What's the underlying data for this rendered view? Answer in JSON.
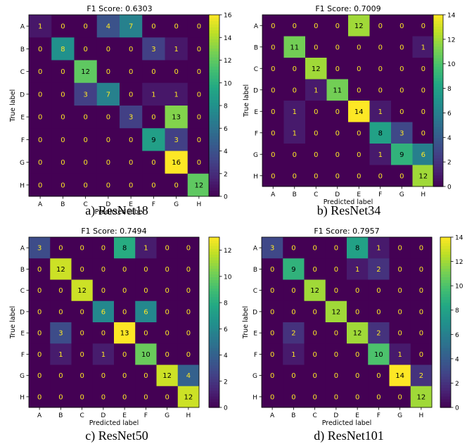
{
  "figure": {
    "captions": [
      "a) ResNet18",
      "b) ResNet34",
      "c) ResNet50",
      "d) ResNet101"
    ]
  },
  "chart_data": [
    {
      "type": "heatmap",
      "title": "F1 Score: 0.6303",
      "xlabel": "Predicted label",
      "ylabel": "True label",
      "categories": [
        "A",
        "B",
        "C",
        "D",
        "E",
        "F",
        "G",
        "H"
      ],
      "values": [
        [
          1,
          0,
          0,
          4,
          7,
          0,
          0,
          0
        ],
        [
          0,
          8,
          0,
          0,
          0,
          3,
          1,
          0
        ],
        [
          0,
          0,
          12,
          0,
          0,
          0,
          0,
          0
        ],
        [
          0,
          0,
          3,
          7,
          0,
          1,
          1,
          0
        ],
        [
          0,
          0,
          0,
          0,
          3,
          0,
          13,
          0
        ],
        [
          0,
          0,
          0,
          0,
          0,
          9,
          3,
          0
        ],
        [
          0,
          0,
          0,
          0,
          0,
          0,
          16,
          0
        ],
        [
          0,
          0,
          0,
          0,
          0,
          0,
          0,
          12
        ]
      ],
      "vmax": 16,
      "colorbar_ticks": [
        0,
        2,
        4,
        6,
        8,
        10,
        12,
        14,
        16
      ]
    },
    {
      "type": "heatmap",
      "title": "F1 Score: 0.7009",
      "xlabel": "Predicted label",
      "ylabel": "True label",
      "categories": [
        "A",
        "B",
        "C",
        "D",
        "E",
        "F",
        "G",
        "H"
      ],
      "values": [
        [
          0,
          0,
          0,
          0,
          12,
          0,
          0,
          0
        ],
        [
          0,
          11,
          0,
          0,
          0,
          0,
          0,
          1
        ],
        [
          0,
          0,
          12,
          0,
          0,
          0,
          0,
          0
        ],
        [
          0,
          0,
          1,
          11,
          0,
          0,
          0,
          0
        ],
        [
          0,
          1,
          0,
          0,
          14,
          1,
          0,
          0
        ],
        [
          0,
          1,
          0,
          0,
          0,
          8,
          3,
          0
        ],
        [
          0,
          0,
          0,
          0,
          0,
          1,
          9,
          6
        ],
        [
          0,
          0,
          0,
          0,
          0,
          0,
          0,
          12
        ]
      ],
      "vmax": 14,
      "colorbar_ticks": [
        0,
        2,
        4,
        6,
        8,
        10,
        12,
        14
      ]
    },
    {
      "type": "heatmap",
      "title": "F1 Score: 0.7494",
      "xlabel": "Predicted label",
      "ylabel": "True label",
      "categories": [
        "A",
        "B",
        "C",
        "D",
        "E",
        "F",
        "G",
        "H"
      ],
      "values": [
        [
          3,
          0,
          0,
          0,
          8,
          1,
          0,
          0
        ],
        [
          0,
          12,
          0,
          0,
          0,
          0,
          0,
          0
        ],
        [
          0,
          0,
          12,
          0,
          0,
          0,
          0,
          0
        ],
        [
          0,
          0,
          0,
          6,
          0,
          6,
          0,
          0
        ],
        [
          0,
          3,
          0,
          0,
          13,
          0,
          0,
          0
        ],
        [
          0,
          1,
          0,
          1,
          0,
          10,
          0,
          0
        ],
        [
          0,
          0,
          0,
          0,
          0,
          0,
          12,
          4
        ],
        [
          0,
          0,
          0,
          0,
          0,
          0,
          0,
          12
        ]
      ],
      "vmax": 13,
      "colorbar_ticks": [
        0,
        2,
        4,
        6,
        8,
        10,
        12
      ]
    },
    {
      "type": "heatmap",
      "title": "F1 Score: 0.7957",
      "xlabel": "Predicted label",
      "ylabel": "True label",
      "categories": [
        "A",
        "B",
        "C",
        "D",
        "E",
        "F",
        "G",
        "H"
      ],
      "values": [
        [
          3,
          0,
          0,
          0,
          8,
          1,
          0,
          0
        ],
        [
          0,
          9,
          0,
          0,
          1,
          2,
          0,
          0
        ],
        [
          0,
          0,
          12,
          0,
          0,
          0,
          0,
          0
        ],
        [
          0,
          0,
          0,
          12,
          0,
          0,
          0,
          0
        ],
        [
          0,
          2,
          0,
          0,
          12,
          2,
          0,
          0
        ],
        [
          0,
          1,
          0,
          0,
          0,
          10,
          1,
          0
        ],
        [
          0,
          0,
          0,
          0,
          0,
          0,
          14,
          2
        ],
        [
          0,
          0,
          0,
          0,
          0,
          0,
          0,
          12
        ]
      ],
      "vmax": 14,
      "colorbar_ticks": [
        0,
        2,
        4,
        6,
        8,
        10,
        12,
        14
      ]
    }
  ]
}
